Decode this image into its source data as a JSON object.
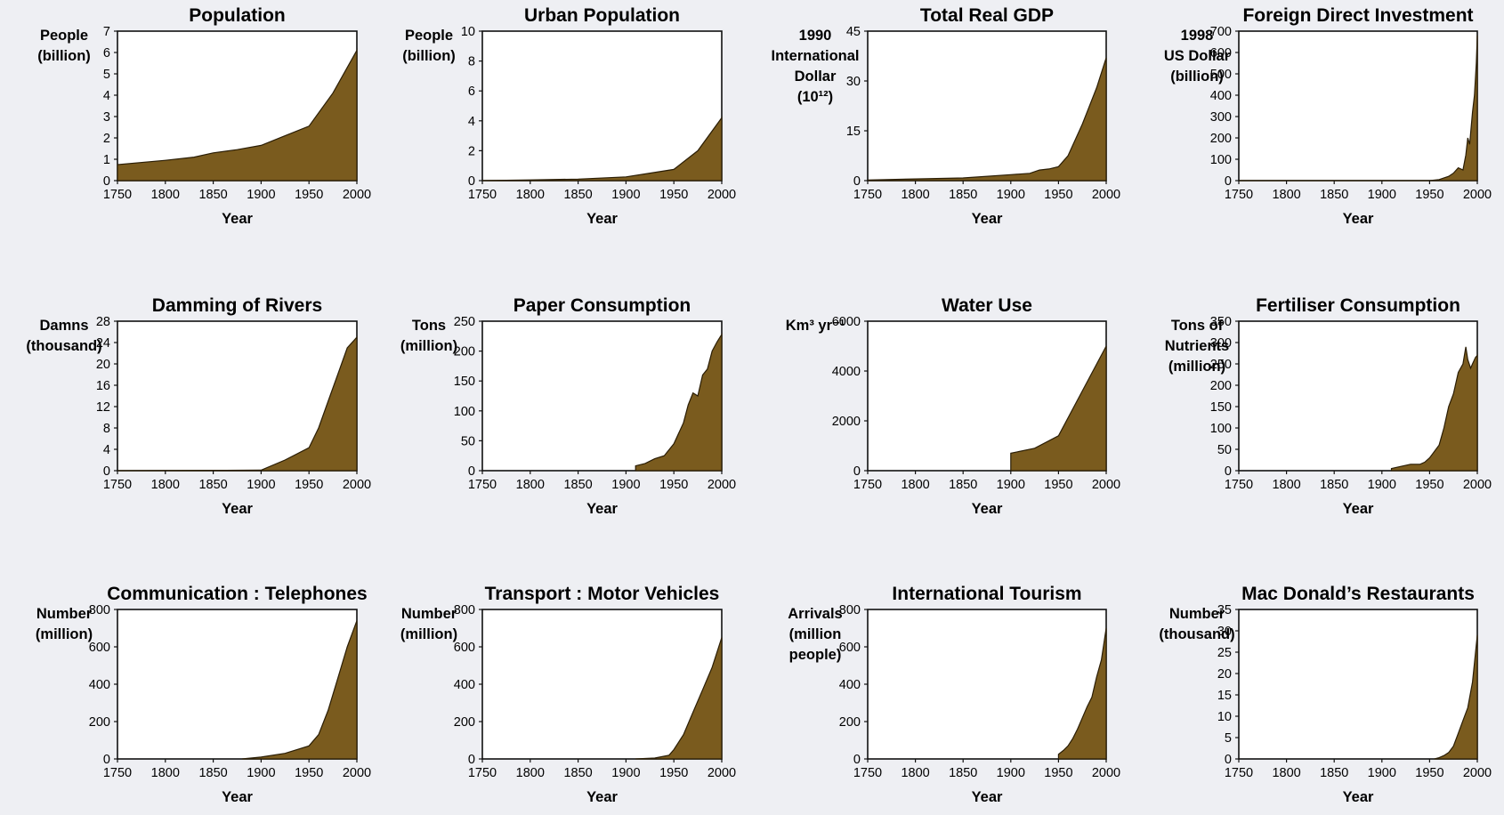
{
  "colors": {
    "background": "#eeeff3",
    "area_fill": "#7a5b1e",
    "area_stroke": "#2a1d05",
    "plot_bg": "#ffffff"
  },
  "chart_data": [
    {
      "type": "area",
      "title": "Population",
      "ylabel": [
        "People",
        "(billion)"
      ],
      "xlabel": "Year",
      "xlim": [
        1750,
        2000
      ],
      "ylim": [
        0,
        7
      ],
      "xticks": [
        1750,
        1800,
        1850,
        1900,
        1950,
        2000
      ],
      "yticks": [
        0,
        1,
        2,
        3,
        4,
        5,
        6,
        7
      ],
      "x": [
        1750,
        1800,
        1830,
        1850,
        1875,
        1900,
        1925,
        1950,
        1975,
        2000
      ],
      "y": [
        0.75,
        0.95,
        1.1,
        1.3,
        1.45,
        1.65,
        2.1,
        2.55,
        4.1,
        6.1
      ]
    },
    {
      "type": "area",
      "title": "Urban Population",
      "ylabel": [
        "People",
        "(billion)"
      ],
      "xlabel": "Year",
      "xlim": [
        1750,
        2000
      ],
      "ylim": [
        0,
        10
      ],
      "xticks": [
        1750,
        1800,
        1850,
        1900,
        1950,
        2000
      ],
      "yticks": [
        0,
        2,
        4,
        6,
        8,
        10
      ],
      "x": [
        1750,
        1800,
        1850,
        1900,
        1925,
        1950,
        1975,
        2000
      ],
      "y": [
        0,
        0.05,
        0.1,
        0.25,
        0.5,
        0.75,
        2.0,
        4.2
      ]
    },
    {
      "type": "area",
      "title": "Total Real GDP",
      "ylabel": [
        "1990",
        "International",
        "Dollar",
        "(10¹²)"
      ],
      "xlabel": "Year",
      "xlim": [
        1750,
        2000
      ],
      "ylim": [
        0,
        45
      ],
      "xticks": [
        1750,
        1800,
        1850,
        1900,
        1950,
        2000
      ],
      "yticks": [
        0,
        15,
        30,
        45
      ],
      "x": [
        1750,
        1800,
        1850,
        1900,
        1920,
        1930,
        1940,
        1950,
        1960,
        1975,
        1990,
        2000
      ],
      "y": [
        0.2,
        0.5,
        0.8,
        1.8,
        2.2,
        3.2,
        3.5,
        4.2,
        7.5,
        17,
        28,
        37
      ]
    },
    {
      "type": "area",
      "title": "Foreign Direct Investment",
      "ylabel": [
        "1998",
        "US Dollar",
        "(billion)"
      ],
      "xlabel": "Year",
      "xlim": [
        1750,
        2000
      ],
      "ylim": [
        0,
        700
      ],
      "xticks": [
        1750,
        1800,
        1850,
        1900,
        1950,
        2000
      ],
      "yticks": [
        0,
        100,
        200,
        300,
        400,
        500,
        600,
        700
      ],
      "x": [
        1750,
        1950,
        1960,
        1970,
        1975,
        1980,
        1985,
        1988,
        1990,
        1992,
        1995,
        1997,
        1999,
        2000
      ],
      "y": [
        0,
        0,
        5,
        20,
        35,
        60,
        50,
        120,
        200,
        170,
        320,
        400,
        550,
        680
      ]
    },
    {
      "type": "area",
      "title": "Damming of Rivers",
      "ylabel": [
        "Damns",
        "(thousand)"
      ],
      "xlabel": "Year",
      "xlim": [
        1750,
        2000
      ],
      "ylim": [
        0,
        28
      ],
      "xticks": [
        1750,
        1800,
        1850,
        1900,
        1950,
        2000
      ],
      "yticks": [
        0,
        4,
        8,
        12,
        16,
        20,
        24,
        28
      ],
      "x": [
        1750,
        1900,
        1925,
        1950,
        1960,
        1970,
        1980,
        1990,
        2000
      ],
      "y": [
        0,
        0.1,
        2,
        4.3,
        8,
        13,
        18,
        23,
        25
      ]
    },
    {
      "type": "area",
      "title": "Paper Consumption",
      "ylabel": [
        "Tons",
        "(million)"
      ],
      "xlabel": "Year",
      "xlim": [
        1750,
        2000
      ],
      "ylim": [
        0,
        250
      ],
      "xticks": [
        1750,
        1800,
        1850,
        1900,
        1950,
        2000
      ],
      "yticks": [
        0,
        50,
        100,
        150,
        200,
        250
      ],
      "x": [
        1910,
        1920,
        1930,
        1940,
        1950,
        1960,
        1965,
        1970,
        1975,
        1980,
        1985,
        1990,
        1995,
        2000
      ],
      "y": [
        8,
        12,
        20,
        25,
        45,
        80,
        110,
        130,
        125,
        160,
        170,
        200,
        215,
        228
      ]
    },
    {
      "type": "area",
      "title": "Water Use",
      "ylabel": [
        "Km³ yr⁻¹"
      ],
      "xlabel": "Year",
      "xlim": [
        1750,
        2000
      ],
      "ylim": [
        0,
        6000
      ],
      "xticks": [
        1750,
        1800,
        1850,
        1900,
        1950,
        2000
      ],
      "yticks": [
        0,
        2000,
        4000,
        6000
      ],
      "x": [
        1900,
        1925,
        1950,
        1975,
        2000
      ],
      "y": [
        700,
        900,
        1400,
        3200,
        5000
      ]
    },
    {
      "type": "area",
      "title": "Fertiliser Consumption",
      "ylabel": [
        "Tons of",
        "Nutrients",
        "(million)"
      ],
      "xlabel": "Year",
      "xlim": [
        1750,
        2000
      ],
      "ylim": [
        0,
        350
      ],
      "xticks": [
        1750,
        1800,
        1850,
        1900,
        1950,
        2000
      ],
      "yticks": [
        0,
        50,
        100,
        150,
        200,
        250,
        300,
        350
      ],
      "x": [
        1910,
        1920,
        1930,
        1940,
        1945,
        1950,
        1955,
        1960,
        1965,
        1970,
        1975,
        1980,
        1985,
        1988,
        1990,
        1993,
        1995,
        1998,
        2000
      ],
      "y": [
        5,
        10,
        15,
        15,
        20,
        30,
        45,
        60,
        100,
        150,
        180,
        230,
        250,
        290,
        260,
        240,
        250,
        265,
        270
      ]
    },
    {
      "type": "area",
      "title": "Communication : Telephones",
      "ylabel": [
        "Number",
        "(million)"
      ],
      "xlabel": "Year",
      "xlim": [
        1750,
        2000
      ],
      "ylim": [
        0,
        800
      ],
      "xticks": [
        1750,
        1800,
        1850,
        1900,
        1950,
        2000
      ],
      "yticks": [
        0,
        200,
        400,
        600,
        800
      ],
      "x": [
        1880,
        1900,
        1925,
        1950,
        1960,
        1970,
        1980,
        1990,
        2000
      ],
      "y": [
        0,
        10,
        30,
        70,
        130,
        260,
        430,
        600,
        740
      ]
    },
    {
      "type": "area",
      "title": "Transport : Motor Vehicles",
      "ylabel": [
        "Number",
        "(million)"
      ],
      "xlabel": "Year",
      "xlim": [
        1750,
        2000
      ],
      "ylim": [
        0,
        800
      ],
      "xticks": [
        1750,
        1800,
        1850,
        1900,
        1950,
        2000
      ],
      "yticks": [
        0,
        200,
        400,
        600,
        800
      ],
      "x": [
        1910,
        1930,
        1945,
        1950,
        1960,
        1970,
        1980,
        1990,
        2000
      ],
      "y": [
        0,
        5,
        20,
        50,
        130,
        250,
        370,
        490,
        650
      ]
    },
    {
      "type": "area",
      "title": "International Tourism",
      "ylabel": [
        "Arrivals",
        "(million",
        "people)"
      ],
      "xlabel": "Year",
      "xlim": [
        1750,
        2000
      ],
      "ylim": [
        0,
        800
      ],
      "xticks": [
        1750,
        1800,
        1850,
        1900,
        1950,
        2000
      ],
      "yticks": [
        0,
        200,
        400,
        600,
        800
      ],
      "x": [
        1950,
        1955,
        1960,
        1965,
        1970,
        1975,
        1980,
        1985,
        1990,
        1995,
        2000
      ],
      "y": [
        25,
        45,
        70,
        110,
        160,
        220,
        280,
        330,
        440,
        530,
        700
      ]
    },
    {
      "type": "area",
      "title": "Mac Donald’s Restaurants",
      "ylabel": [
        "Number",
        "(thousand)"
      ],
      "xlabel": "Year",
      "xlim": [
        1750,
        2000
      ],
      "ylim": [
        0,
        35
      ],
      "xticks": [
        1750,
        1800,
        1850,
        1900,
        1950,
        2000
      ],
      "yticks": [
        0,
        5,
        10,
        15,
        20,
        25,
        30,
        35
      ],
      "x": [
        1955,
        1960,
        1965,
        1970,
        1975,
        1980,
        1985,
        1990,
        1995,
        2000
      ],
      "y": [
        0,
        0.3,
        0.8,
        1.5,
        3,
        6,
        9,
        12,
        18,
        29
      ]
    }
  ]
}
